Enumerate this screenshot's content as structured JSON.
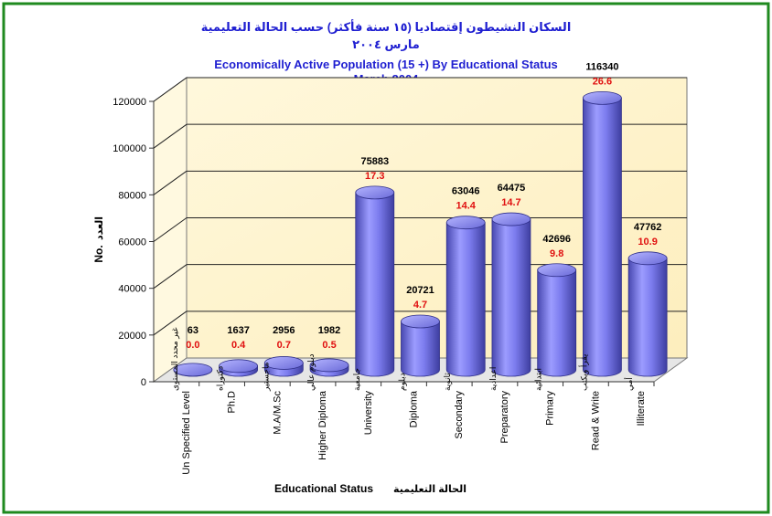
{
  "chart_data": {
    "type": "bar",
    "title_ar": "السكان النشيطون إقتصاديا (١٥ سنة فأكثر) حسب الحالة التعليمية",
    "subtitle_ar": "مارس ٢٠٠٤",
    "title": "Economically Active Population (15 +) By Educational Status",
    "subtitle": "March 2004",
    "xlabel": "Educational Status",
    "xlabel_ar": "الحالة التعليمية",
    "ylabel": "No.",
    "ylabel_ar": "العدد",
    "ylim": [
      0,
      120000
    ],
    "yticks": [
      "0",
      "20000",
      "40000",
      "60000",
      "80000",
      "100000",
      "120000"
    ],
    "grid": true,
    "categories": [
      {
        "en": "Un Specified Level",
        "ar": "غير محدد المستوى"
      },
      {
        "en": "Ph.D",
        "ar": "دكتوراه"
      },
      {
        "en": "M.A/M.Sc",
        "ar": "ماجستير"
      },
      {
        "en": "Higher Diploma",
        "ar": "دبلوم عالي"
      },
      {
        "en": "University",
        "ar": "جامعية"
      },
      {
        "en": "Diploma",
        "ar": "دبلوم"
      },
      {
        "en": "Secondary",
        "ar": "ثانوية"
      },
      {
        "en": "Preparatory",
        "ar": "اعدادية"
      },
      {
        "en": "Primary",
        "ar": "ابتدائية"
      },
      {
        "en": "Read & Write",
        "ar": "يقرأ ويكتب"
      },
      {
        "en": "Illiterate",
        "ar": "أمي"
      }
    ],
    "values": [
      63,
      1637,
      2956,
      1982,
      75883,
      20721,
      63046,
      64475,
      42696,
      116340,
      47762
    ],
    "value_labels": [
      "63",
      "1637",
      "2956",
      "1982",
      "75883",
      "20721",
      "63046",
      "64475",
      "42696",
      "116340",
      "47762"
    ],
    "percent_labels": [
      "0.0",
      "0.4",
      "0.7",
      "0.5",
      "17.3",
      "4.7",
      "14.4",
      "14.7",
      "9.8",
      "26.6",
      "10.9"
    ],
    "colors": {
      "bar": "#7b7bee",
      "bar_dark": "#4a4ab8",
      "bar_light": "#a8a8ff",
      "wall": "#fff6d2",
      "title": "#1f1fd1",
      "percent": "#e01010",
      "frame": "#1f8a1f"
    }
  }
}
